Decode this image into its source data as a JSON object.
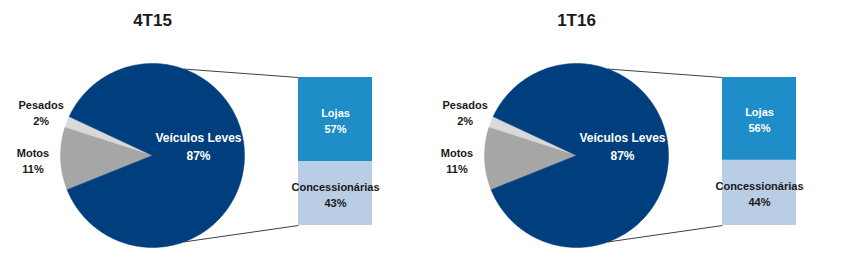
{
  "chart_data": [
    {
      "type": "pie",
      "title": "4T15",
      "categories": [
        "Pesados",
        "Motos",
        "Veículos Leves"
      ],
      "values": [
        2,
        11,
        87
      ],
      "value_labels": [
        "2%",
        "11%",
        "87%"
      ],
      "colors": [
        "#D9D9D9",
        "#A6A6A6",
        "#003F7D"
      ],
      "data_labels": true,
      "breakdown": {
        "of": "Veículos Leves",
        "type": "bar",
        "stacked": true,
        "categories": [
          "Lojas",
          "Concessionárias"
        ],
        "values": [
          57,
          43
        ],
        "value_labels": [
          "57%",
          "43%"
        ],
        "colors": [
          "#1F8DC8",
          "#B9CDE5"
        ],
        "data_labels": true
      }
    },
    {
      "type": "pie",
      "title": "1T16",
      "categories": [
        "Pesados",
        "Motos",
        "Veículos Leves"
      ],
      "values": [
        2,
        11,
        87
      ],
      "value_labels": [
        "2%",
        "11%",
        "87%"
      ],
      "colors": [
        "#D9D9D9",
        "#A6A6A6",
        "#003F7D"
      ],
      "data_labels": true,
      "breakdown": {
        "of": "Veículos Leves",
        "type": "bar",
        "stacked": true,
        "categories": [
          "Lojas",
          "Concessionárias"
        ],
        "values": [
          56,
          44
        ],
        "value_labels": [
          "56%",
          "44%"
        ],
        "colors": [
          "#1F8DC8",
          "#B9CDE5"
        ],
        "data_labels": true
      }
    }
  ]
}
